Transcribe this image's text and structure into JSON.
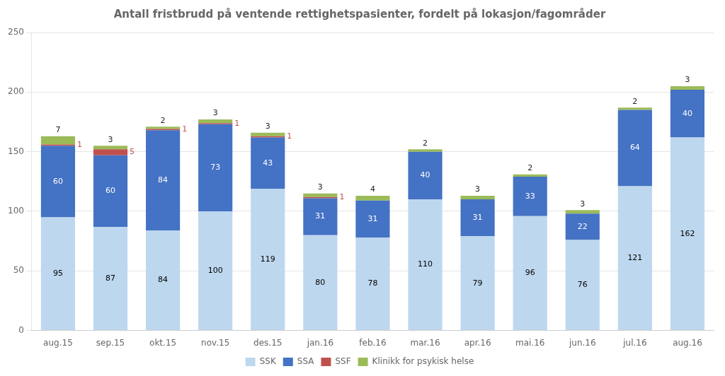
{
  "chart_data": {
    "type": "bar",
    "title": "Antall fristbrudd på ventende rettighetspasienter, fordelt på lokasjon/fagområder",
    "categories": [
      "aug.15",
      "sep.15",
      "okt.15",
      "nov.15",
      "des.15",
      "jan.16",
      "feb.16",
      "mar.16",
      "apr.16",
      "mai.16",
      "jun.16",
      "jul.16",
      "aug.16"
    ],
    "series": [
      {
        "name": "SSK",
        "color": "#BDD7EE",
        "values": [
          95,
          87,
          84,
          100,
          119,
          80,
          78,
          110,
          79,
          96,
          76,
          121,
          162
        ]
      },
      {
        "name": "SSA",
        "color": "#4472C4",
        "values": [
          60,
          60,
          84,
          73,
          43,
          31,
          31,
          40,
          31,
          33,
          22,
          64,
          40
        ]
      },
      {
        "name": "SSF",
        "color": "#C0504D",
        "values": [
          1,
          5,
          1,
          1,
          1,
          1,
          0,
          0,
          0,
          0,
          0,
          0,
          0
        ]
      },
      {
        "name": "Klinikk for psykisk helse",
        "color": "#9BBB59",
        "values": [
          7,
          3,
          2,
          3,
          3,
          3,
          4,
          2,
          3,
          2,
          3,
          2,
          3
        ]
      }
    ],
    "ylim": [
      0,
      250
    ],
    "yticks": [
      0,
      50,
      100,
      150,
      200,
      250
    ],
    "stacked": true,
    "grid": true,
    "legend": "bottom",
    "data_labels": true
  }
}
